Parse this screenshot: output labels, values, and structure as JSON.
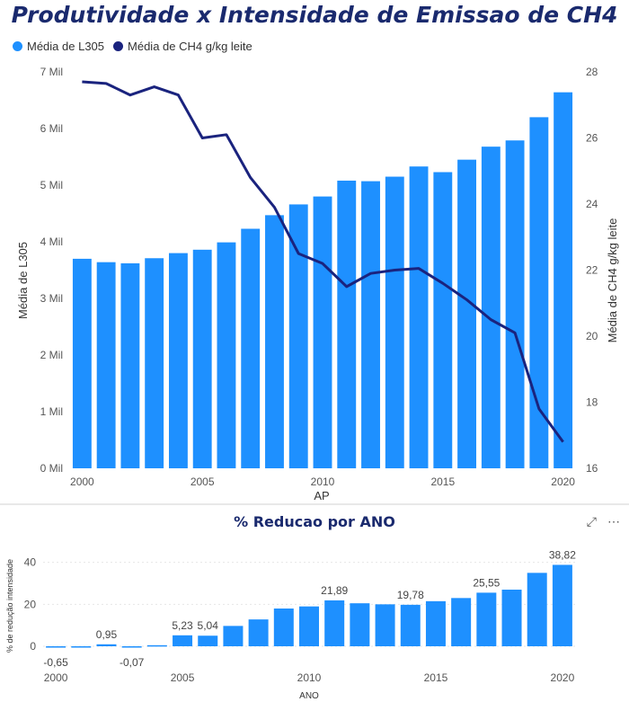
{
  "colors": {
    "bar": "#1e90ff",
    "line": "#1a237e",
    "title": "#1a2a6e",
    "axis": "#555555"
  },
  "chart_data": [
    {
      "type": "bar+line",
      "title": "Produtividade x Intensidade de Emissao de CH4",
      "legend": [
        "Média de L305",
        "Média de CH4 g/kg leite"
      ],
      "xlabel": "AP",
      "ylabel_left": "Média de L305",
      "ylabel_right": "Média de CH4 g/kg leite",
      "x": [
        2000,
        2001,
        2002,
        2003,
        2004,
        2005,
        2006,
        2007,
        2008,
        2009,
        2010,
        2011,
        2012,
        2013,
        2014,
        2015,
        2016,
        2017,
        2018,
        2019,
        2020
      ],
      "x_ticks": [
        "2000",
        "2005",
        "2010",
        "2015",
        "2020"
      ],
      "bars": {
        "name": "Média de L305",
        "values": [
          3700,
          3640,
          3620,
          3710,
          3800,
          3860,
          3990,
          4230,
          4470,
          4660,
          4800,
          5080,
          5070,
          5150,
          5330,
          5230,
          5450,
          5680,
          5790,
          6200,
          6640
        ]
      },
      "line": {
        "name": "Média de CH4 g/kg leite",
        "values": [
          27.7,
          27.65,
          27.3,
          27.55,
          27.3,
          26.0,
          26.1,
          24.8,
          23.9,
          22.5,
          22.2,
          21.5,
          21.9,
          22.0,
          22.05,
          21.6,
          21.1,
          20.5,
          20.1,
          17.8,
          16.8
        ]
      },
      "ylim_left": [
        0,
        7000
      ],
      "yticks_left": [
        "0 Mil",
        "1 Mil",
        "2 Mil",
        "3 Mil",
        "4 Mil",
        "5 Mil",
        "6 Mil",
        "7 Mil"
      ],
      "ylim_right": [
        16,
        28
      ],
      "yticks_right": [
        "16",
        "18",
        "20",
        "22",
        "24",
        "26",
        "28"
      ]
    },
    {
      "type": "bar",
      "title": "% Reducao por ANO",
      "xlabel": "ANO",
      "ylabel": "% de redução intensidade",
      "x": [
        2000,
        2001,
        2002,
        2003,
        2004,
        2005,
        2006,
        2007,
        2008,
        2009,
        2010,
        2011,
        2012,
        2013,
        2014,
        2015,
        2016,
        2017,
        2018,
        2019,
        2020
      ],
      "values": [
        -0.65,
        -0.3,
        0.95,
        -0.07,
        0.5,
        5.23,
        5.04,
        9.7,
        12.8,
        18.0,
        19.0,
        21.89,
        20.5,
        20.0,
        19.78,
        21.5,
        23.0,
        25.55,
        27.0,
        35.0,
        38.82
      ],
      "data_labels": {
        "0": "-0,65",
        "2": "0,95",
        "3": "-0,07",
        "5": "5,23",
        "6": "5,04",
        "11": "21,89",
        "14": "19,78",
        "17": "25,55",
        "20": "38,82"
      },
      "ylim": [
        -3,
        45
      ],
      "yticks": [
        "0",
        "20",
        "40"
      ],
      "x_ticks": [
        "2000",
        "2005",
        "2010",
        "2015",
        "2020"
      ]
    }
  ],
  "header_icons": {
    "expand": "expand-icon",
    "more": "more-options-icon"
  }
}
